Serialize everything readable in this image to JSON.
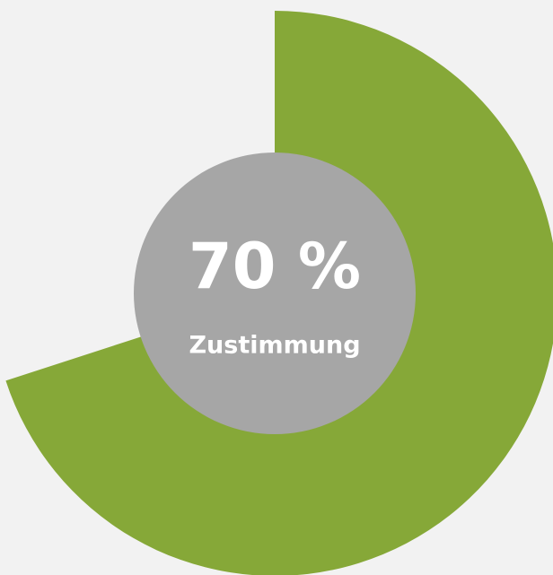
{
  "chart_data": {
    "type": "pie",
    "categories": [
      "Zustimmung"
    ],
    "values": [
      70
    ],
    "value_labels": [
      "70 %"
    ],
    "color": "#86a838",
    "center_color": "#a6a6a6"
  }
}
